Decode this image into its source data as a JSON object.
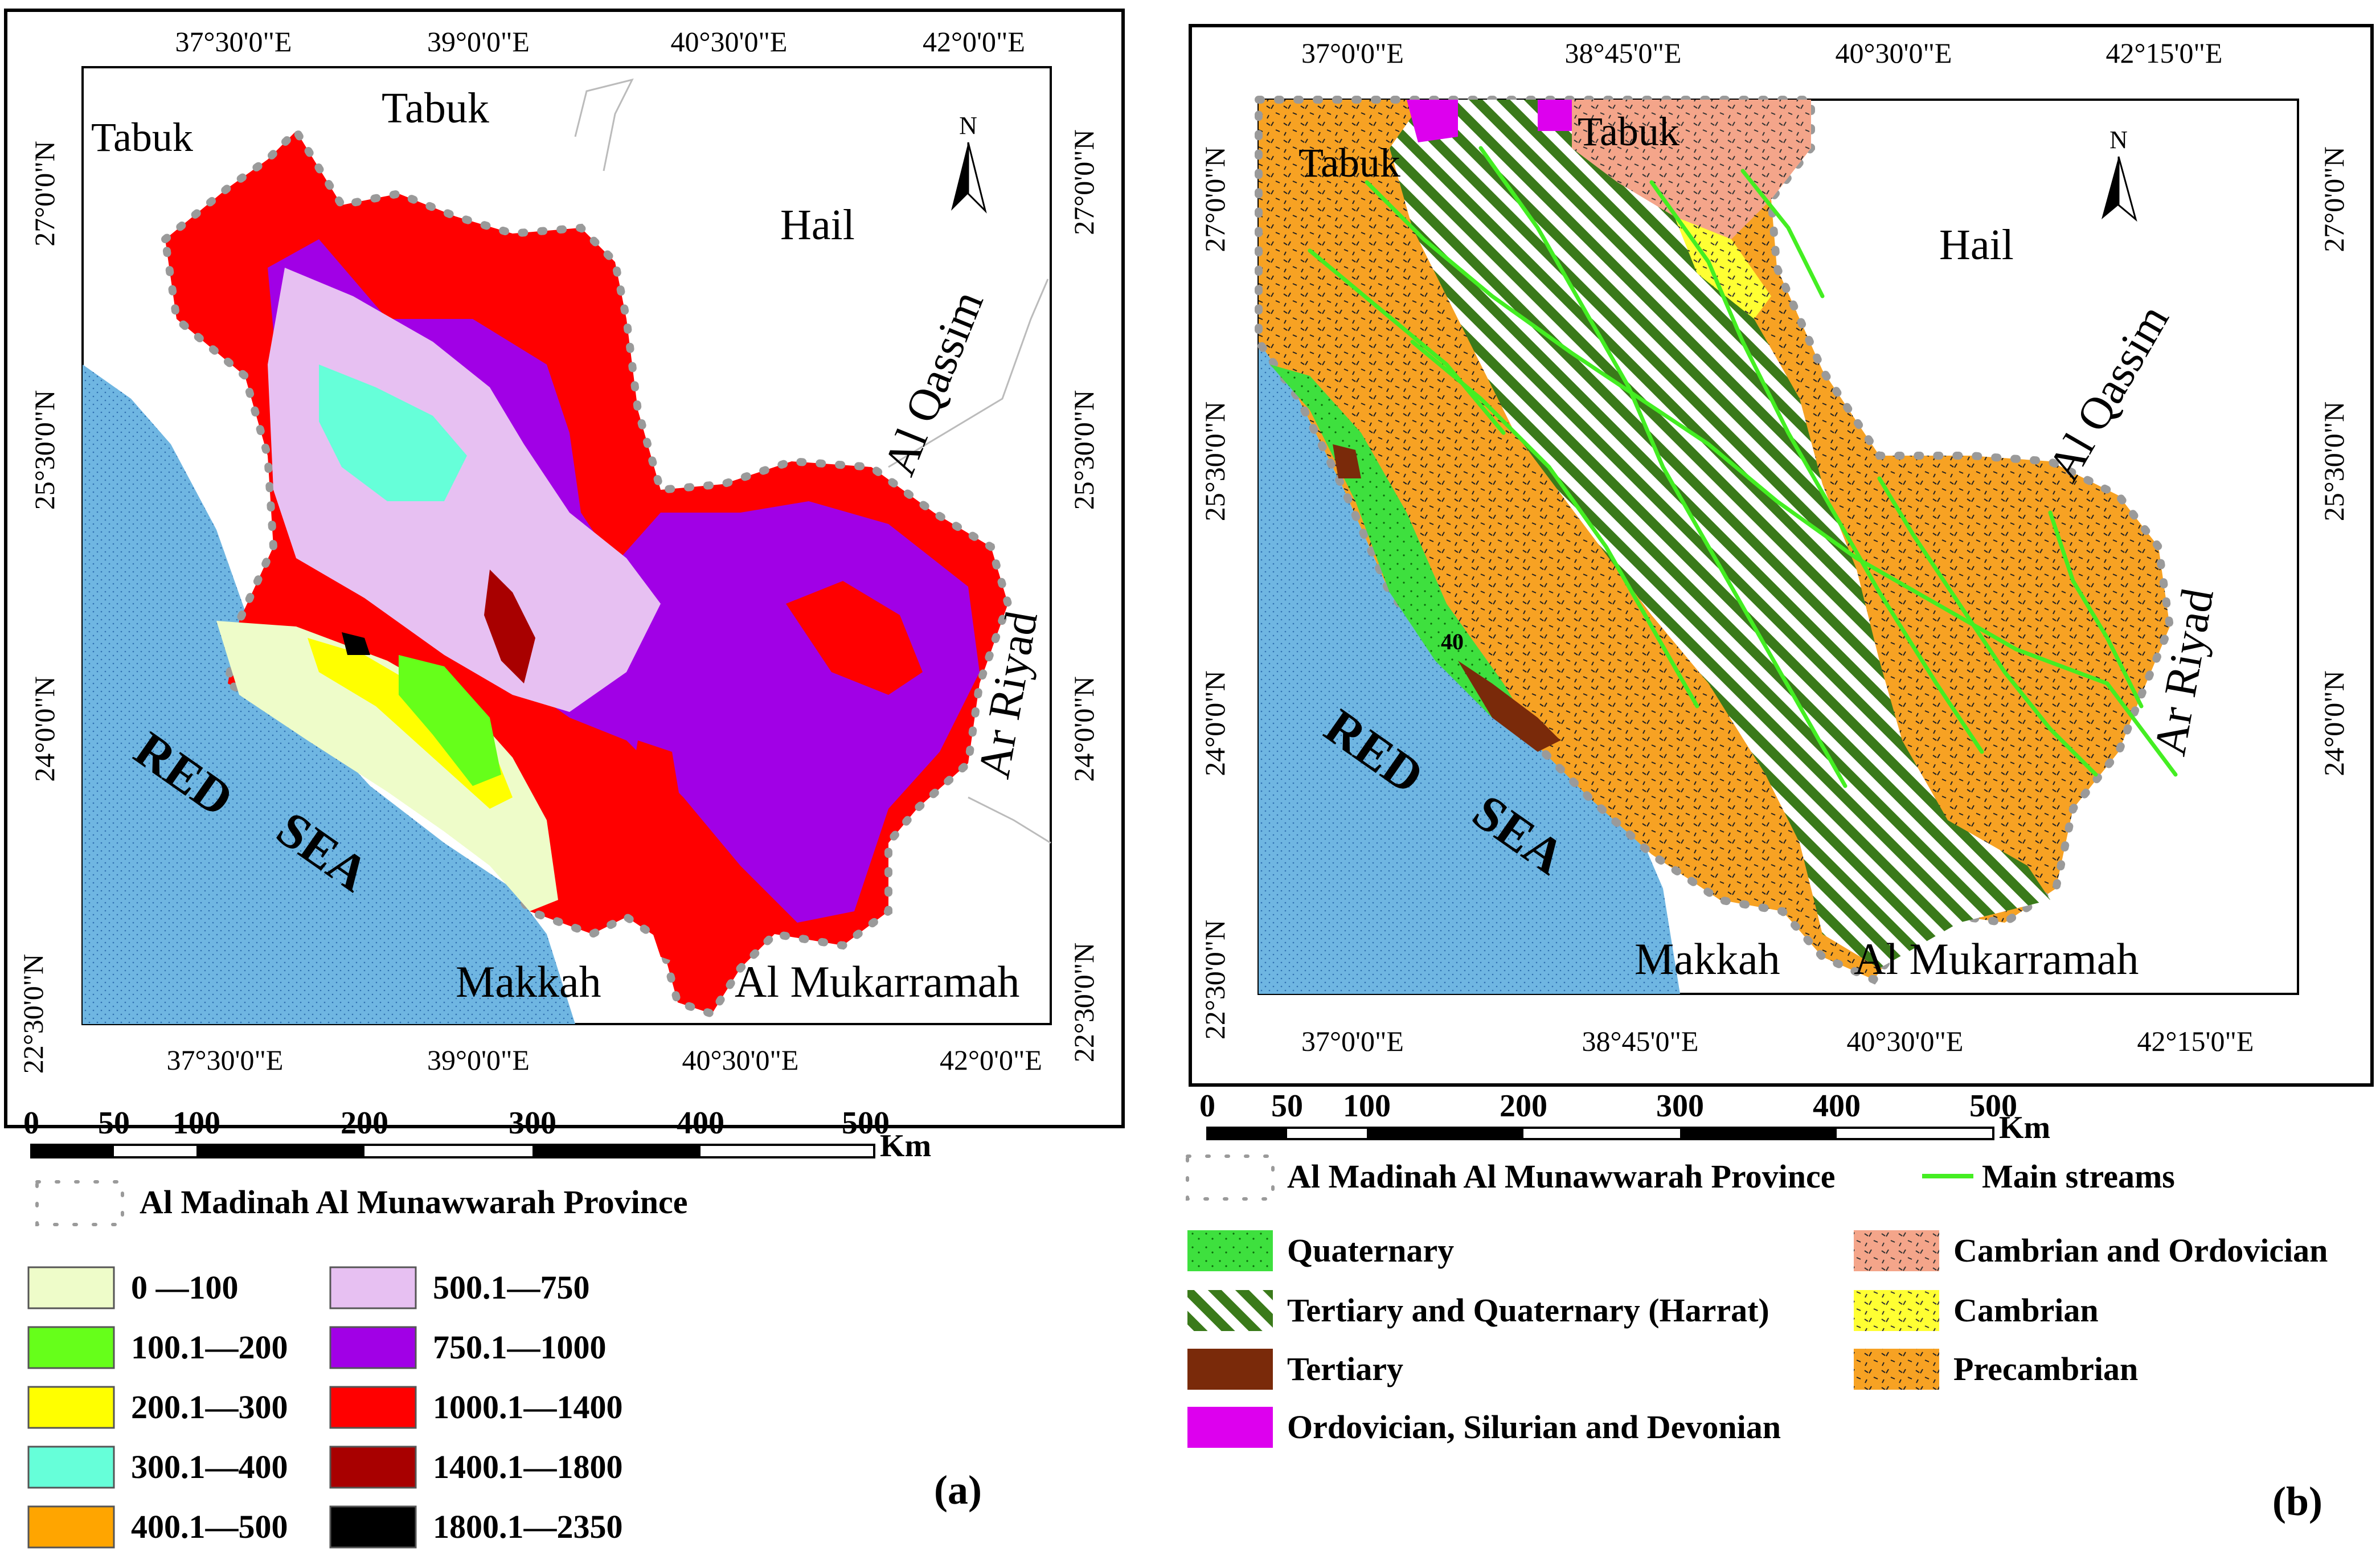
{
  "panel_a": {
    "label": "(a)",
    "places": {
      "tabuk_west": "Tabuk",
      "tabuk_north": "Tabuk",
      "hail": "Hail",
      "qassim": "Al Qassim",
      "riyad": "Ar Riyad",
      "makkah": "Makkah",
      "mukarramah": "Al Mukarramah",
      "red": "RED",
      "sea": "SEA"
    },
    "north": "N",
    "lon_top": [
      "37°30'0\"E",
      "39°0'0\"E",
      "40°30'0\"E",
      "42°0'0\"E"
    ],
    "lon_bottom": [
      "37°30'0\"E",
      "39°0'0\"E",
      "40°30'0\"E",
      "42°0'0\"E"
    ],
    "lat_left": [
      "27°0'0\"N",
      "25°30'0\"N",
      "24°0'0\"N",
      "22°30'0\"N"
    ],
    "lat_right": [
      "27°0'0\"N",
      "25°30'0\"N",
      "24°0'0\"N",
      "22°30'0\"N"
    ],
    "scale": {
      "ticks": [
        "0",
        "50",
        "100",
        "200",
        "300",
        "400",
        "500"
      ],
      "unit": "Km"
    },
    "boundary_legend": "Al Madinah Al Munawwarah Province",
    "elevation_legend": [
      {
        "label": "0 —100",
        "color": "#eefcc9"
      },
      {
        "label": "100.1—200",
        "color": "#66ff1a"
      },
      {
        "label": "200.1—300",
        "color": "#ffff00"
      },
      {
        "label": "300.1—400",
        "color": "#66ffd9"
      },
      {
        "label": "400.1—500",
        "color": "#ffa500"
      },
      {
        "label": "500.1—750",
        "color": "#e7c0f2"
      },
      {
        "label": "750.1—1000",
        "color": "#a100e6"
      },
      {
        "label": "1000.1—1400",
        "color": "#ff0000"
      },
      {
        "label": "1400.1—1800",
        "color": "#a80000"
      },
      {
        "label": "1800.1—2350",
        "color": "#000000"
      }
    ]
  },
  "panel_b": {
    "label": "(b)",
    "places": {
      "tabuk": "Tabuk",
      "tabuk_north": "Tabuk",
      "hail": "Hail",
      "qassim": "Al Qassim",
      "riyad": "Ar Riyad",
      "makkah": "Makkah",
      "mukarramah": "Al Mukarramah",
      "red": "RED",
      "sea": "SEA",
      "route": "40"
    },
    "north": "N",
    "lon_top": [
      "37°0'0\"E",
      "38°45'0\"E",
      "40°30'0\"E",
      "42°15'0\"E"
    ],
    "lon_bottom": [
      "37°0'0\"E",
      "38°45'0\"E",
      "40°30'0\"E",
      "42°15'0\"E"
    ],
    "lat_left": [
      "27°0'0\"N",
      "25°30'0\"N",
      "24°0'0\"N",
      "22°30'0\"N"
    ],
    "lat_right": [
      "27°0'0\"N",
      "25°30'0\"N",
      "24°0'0\"N"
    ],
    "scale": {
      "ticks": [
        "0",
        "50",
        "100",
        "200",
        "300",
        "400",
        "500"
      ],
      "unit": "Km"
    },
    "boundary_legend": "Al Madinah Al Munawwarah Province",
    "streams_legend": "Main streams",
    "geology_legend": [
      {
        "label": "Quaternary",
        "color": "#3ee03e"
      },
      {
        "label": "Tertiary and Quaternary (Harrat)",
        "color": "#3a7a1a"
      },
      {
        "label": "Tertiary",
        "color": "#7a2a0a"
      },
      {
        "label": "Ordovician, Silurian and Devonian",
        "color": "#dd00ee"
      },
      {
        "label": "Cambrian and Ordovician",
        "color": "#f4a58a"
      },
      {
        "label": "Cambrian",
        "color": "#ffff33"
      },
      {
        "label": "Precambrian",
        "color": "#f7a223"
      }
    ]
  },
  "colors": {
    "sea": "#6fb6e2",
    "stream": "#44ee22",
    "boundary_dot": "#9a9a9a"
  }
}
